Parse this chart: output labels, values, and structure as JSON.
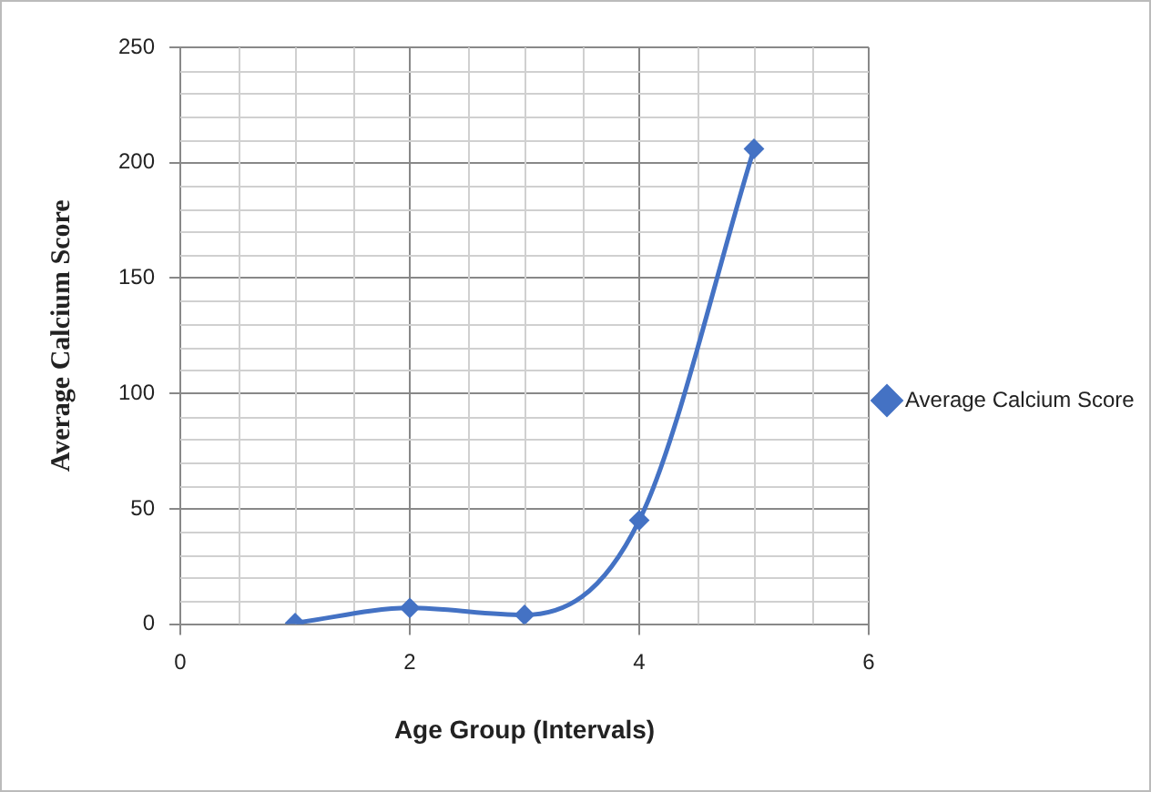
{
  "chart_data": {
    "type": "line",
    "xlabel": "Age Group (Intervals)",
    "ylabel": "Average Calcium Score",
    "x": [
      1,
      2,
      3,
      4,
      5
    ],
    "series": [
      {
        "name": "Average Calcium Score",
        "color": "#4472c4",
        "values": [
          0.5,
          7,
          4,
          45,
          206
        ]
      }
    ],
    "xlim": [
      0,
      6
    ],
    "xticks": [
      0,
      2,
      4,
      6
    ],
    "ylim": [
      0,
      250
    ],
    "yticks": [
      0,
      50,
      100,
      150,
      200,
      250
    ],
    "grid": true,
    "legend": "right",
    "marker": "diamond",
    "line_style": "solid"
  }
}
